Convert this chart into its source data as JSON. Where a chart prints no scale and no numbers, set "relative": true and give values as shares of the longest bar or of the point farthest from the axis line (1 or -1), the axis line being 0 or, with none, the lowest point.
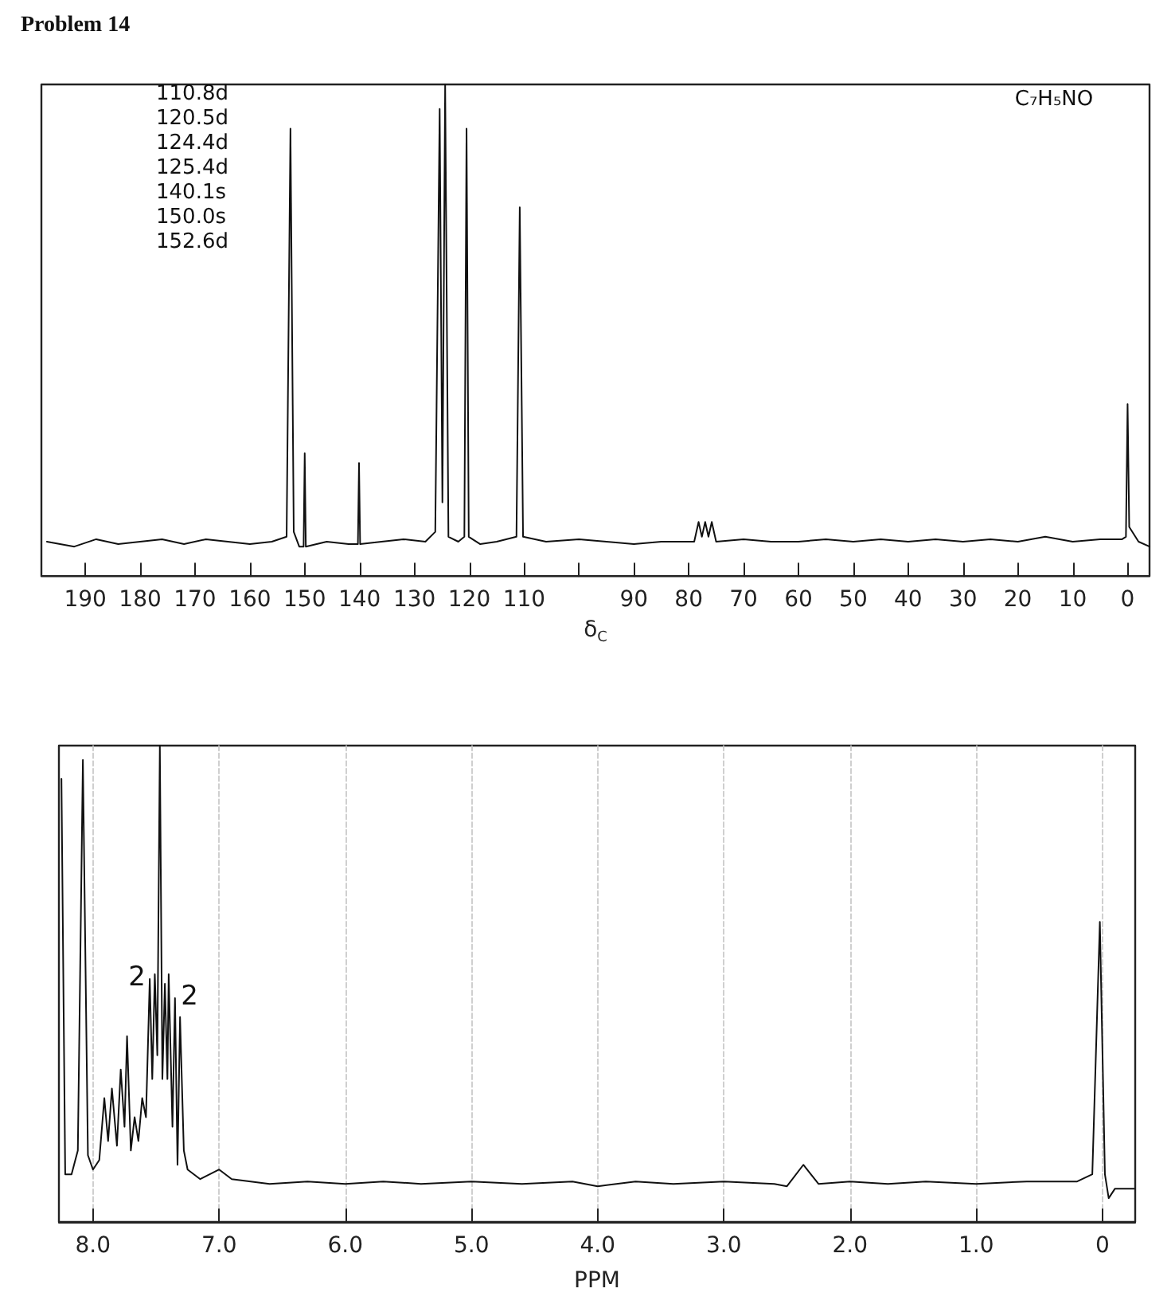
{
  "chart_data": [
    {
      "type": "line",
      "title": "Problem 14",
      "xlabel": "δ$_{C}$",
      "relative": true,
      "xlim": [
        198,
        -4
      ],
      "xticks": [
        190,
        180,
        170,
        160,
        150,
        140,
        130,
        120,
        110,
        {
          "value": 100,
          "label": null
        },
        90,
        80,
        70,
        60,
        50,
        40,
        30,
        20,
        10,
        0
      ],
      "grid": false,
      "marker": "none",
      "line_style": "solid",
      "annotations": [
        "110.8d\n120.5d\n124.4d\n125.4d\n140.1s\n150.0s\n152.6d",
        "C₇H₅NO"
      ],
      "series": [
        {
          "color": "#111111",
          "x": [
            197,
            192,
            188,
            184,
            180,
            176,
            172,
            168,
            164,
            160,
            156,
            153.3,
            152.6,
            152,
            151,
            150.2,
            150.0,
            149.8,
            146,
            142,
            140.3,
            140.1,
            139.9,
            136,
            132,
            128,
            126.2,
            125.4,
            124.9,
            124.4,
            123.8,
            122,
            120.9,
            120.5,
            120.1,
            118,
            115,
            111.4,
            110.8,
            110.2,
            106,
            100,
            95,
            90,
            85,
            79,
            78.2,
            77.6,
            77.0,
            76.4,
            75.8,
            75,
            70,
            65,
            60,
            55,
            50,
            45,
            40,
            35,
            30,
            25,
            20,
            15,
            10,
            5,
            1,
            0.3,
            0,
            -0.3,
            -2,
            -4
          ],
          "values": [
            0.07,
            0.06,
            0.075,
            0.065,
            0.07,
            0.075,
            0.065,
            0.075,
            0.07,
            0.065,
            0.07,
            0.08,
            0.91,
            0.09,
            0.06,
            0.06,
            0.25,
            0.06,
            0.07,
            0.065,
            0.065,
            0.23,
            0.065,
            0.07,
            0.075,
            0.07,
            0.09,
            0.95,
            0.15,
            1.0,
            0.08,
            0.07,
            0.08,
            0.91,
            0.08,
            0.065,
            0.07,
            0.08,
            0.75,
            0.08,
            0.07,
            0.075,
            0.07,
            0.065,
            0.07,
            0.07,
            0.11,
            0.08,
            0.11,
            0.08,
            0.11,
            0.07,
            0.075,
            0.07,
            0.07,
            0.075,
            0.07,
            0.075,
            0.07,
            0.075,
            0.07,
            0.075,
            0.07,
            0.08,
            0.07,
            0.075,
            0.075,
            0.08,
            0.35,
            0.1,
            0.07,
            0.06
          ]
        }
      ]
    },
    {
      "type": "line",
      "xlabel": "PPM",
      "relative": true,
      "xlim": [
        8.27,
        -0.26
      ],
      "xticks": [
        {
          "value": 8,
          "label": "8.0"
        },
        {
          "value": 7,
          "label": "7.0"
        },
        {
          "value": 6,
          "label": "6.0"
        },
        {
          "value": 5,
          "label": "5.0"
        },
        {
          "value": 4,
          "label": "4.0"
        },
        {
          "value": 3,
          "label": "3.0"
        },
        {
          "value": 2,
          "label": "2.0"
        },
        {
          "value": 1,
          "label": "1.0"
        },
        0
      ],
      "grid": "x",
      "marker": "none",
      "line_style": "solid",
      "annotations": [
        "2",
        "2"
      ],
      "series": [
        {
          "color": "#111111",
          "x": [
            8.25,
            8.22,
            8.17,
            8.12,
            8.08,
            8.04,
            8.0,
            7.95,
            7.91,
            7.88,
            7.85,
            7.81,
            7.78,
            7.75,
            7.73,
            7.7,
            7.67,
            7.64,
            7.61,
            7.58,
            7.55,
            7.53,
            7.51,
            7.49,
            7.47,
            7.45,
            7.43,
            7.41,
            7.4,
            7.37,
            7.35,
            7.33,
            7.31,
            7.28,
            7.25,
            7.15,
            7.0,
            6.9,
            6.6,
            6.3,
            6.0,
            5.7,
            5.4,
            5.0,
            4.6,
            4.2,
            4.0,
            3.7,
            3.4,
            3.0,
            2.6,
            2.5,
            2.37,
            2.25,
            2.0,
            1.7,
            1.4,
            1.0,
            0.6,
            0.2,
            0.08,
            0.02,
            -0.02,
            -0.05,
            -0.1,
            -0.25
          ],
          "values": [
            0.93,
            0.1,
            0.1,
            0.15,
            0.97,
            0.14,
            0.11,
            0.13,
            0.26,
            0.17,
            0.28,
            0.16,
            0.32,
            0.2,
            0.39,
            0.15,
            0.22,
            0.17,
            0.26,
            0.22,
            0.51,
            0.3,
            0.52,
            0.35,
            1.0,
            0.3,
            0.5,
            0.3,
            0.52,
            0.2,
            0.47,
            0.12,
            0.43,
            0.15,
            0.11,
            0.09,
            0.11,
            0.09,
            0.08,
            0.085,
            0.08,
            0.085,
            0.08,
            0.085,
            0.08,
            0.085,
            0.075,
            0.085,
            0.08,
            0.085,
            0.08,
            0.075,
            0.12,
            0.08,
            0.085,
            0.08,
            0.085,
            0.08,
            0.085,
            0.085,
            0.1,
            0.63,
            0.1,
            0.05,
            0.07,
            0.07
          ]
        }
      ]
    }
  ]
}
